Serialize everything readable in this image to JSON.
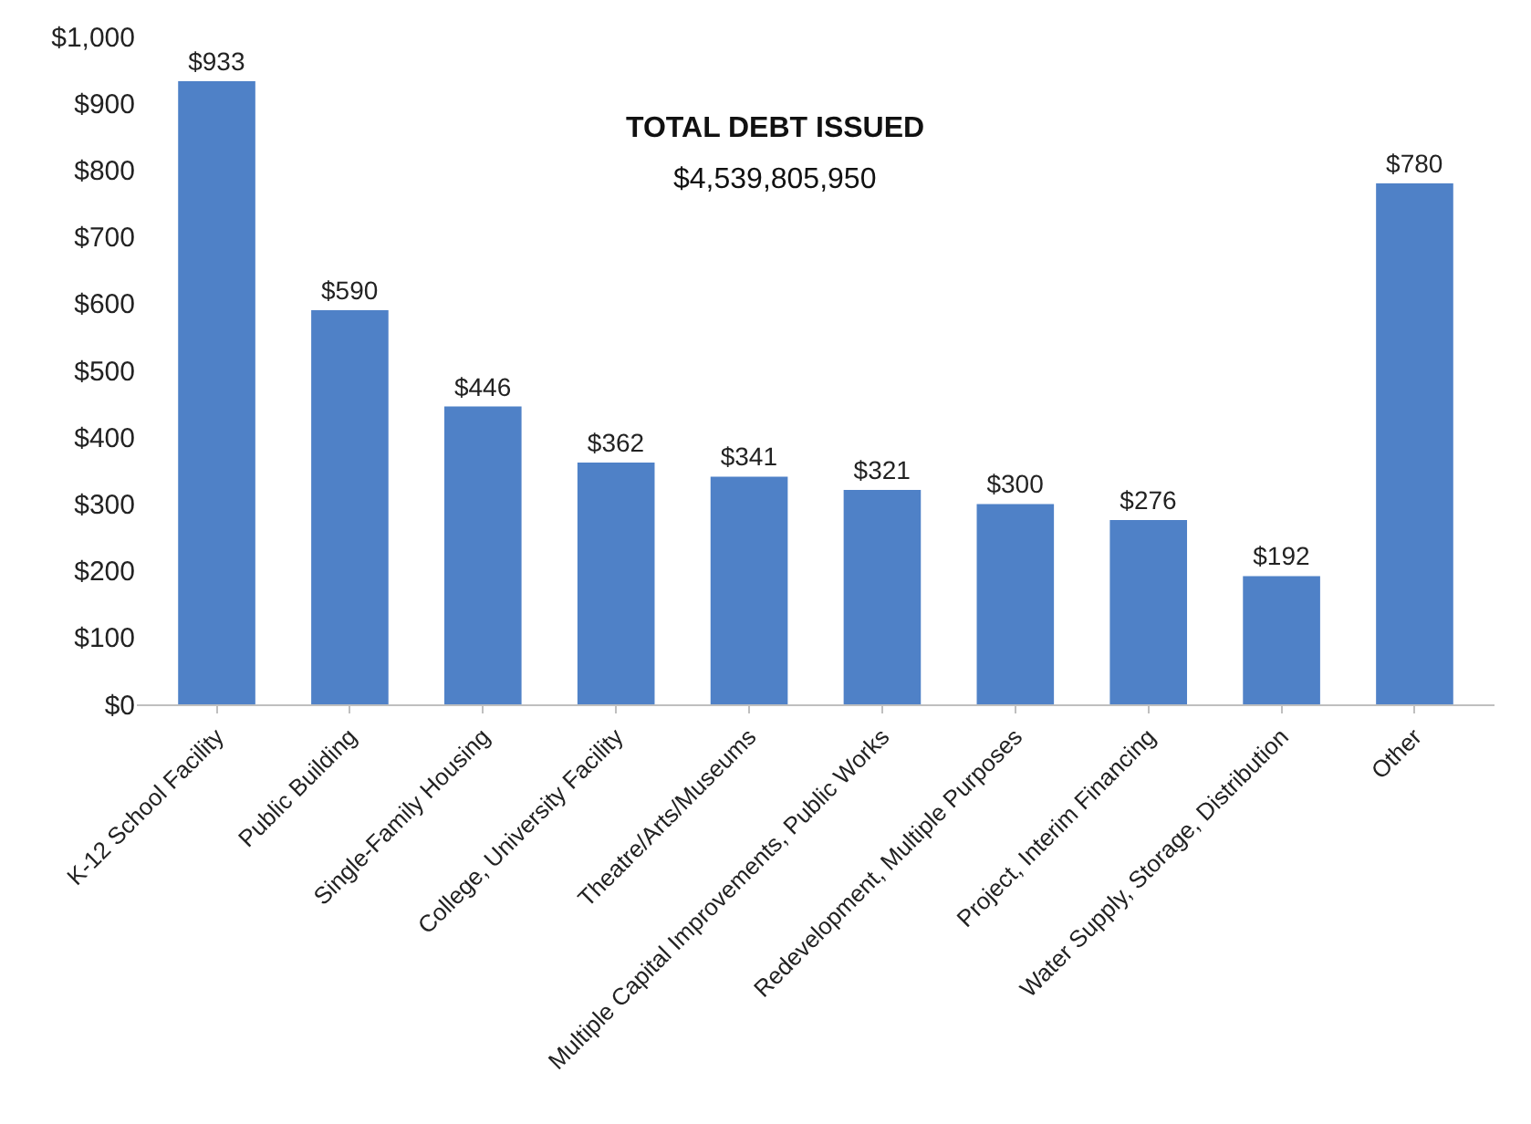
{
  "chart_data": {
    "type": "bar",
    "categories": [
      "K-12 School Facility",
      "Public Building",
      "Single-Family Housing",
      "College, University Facility",
      "Theatre/Arts/Museums",
      "Multiple Capital Improvements, Public Works",
      "Redevelopment, Multiple Purposes",
      "Project, Interim Financing",
      "Water Supply, Storage, Distribution",
      "Other"
    ],
    "values": [
      933,
      590,
      446,
      362,
      341,
      321,
      300,
      276,
      192,
      780
    ],
    "value_labels": [
      "$933",
      "$590",
      "$446",
      "$362",
      "$341",
      "$321",
      "$300",
      "$276",
      "$192",
      "$780"
    ],
    "color": "#4f81c7",
    "ylim": [
      0,
      1000
    ],
    "yticks": [
      {
        "value": 0,
        "label": "$0"
      },
      {
        "value": 100,
        "label": "$100"
      },
      {
        "value": 200,
        "label": "$200"
      },
      {
        "value": 300,
        "label": "$300"
      },
      {
        "value": 400,
        "label": "$400"
      },
      {
        "value": 500,
        "label": "$500"
      },
      {
        "value": 600,
        "label": "$600"
      },
      {
        "value": 700,
        "label": "$700"
      },
      {
        "value": 800,
        "label": "$800"
      },
      {
        "value": 900,
        "label": "$900"
      },
      {
        "value": 1000,
        "label": "$1,000"
      }
    ],
    "annotations": [
      "TOTAL DEBT ISSUED",
      "$4,539,805,950"
    ]
  }
}
